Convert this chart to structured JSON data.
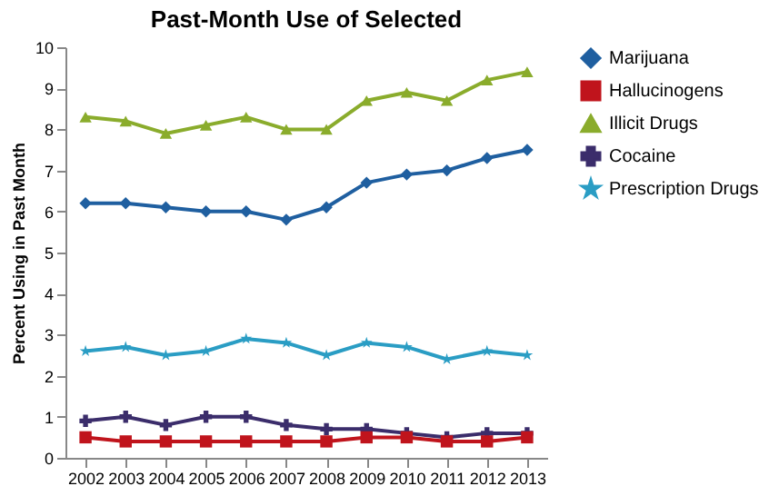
{
  "chart_data": {
    "type": "line",
    "title": "Past-Month Use of Selected",
    "ylabel": "Percent Using in Past Month",
    "categories": [
      "2002",
      "2003",
      "2004",
      "2005",
      "2006",
      "2007",
      "2008",
      "2009",
      "2010",
      "2011",
      "2012",
      "2013"
    ],
    "ylim": [
      0,
      10
    ],
    "yticks": [
      0,
      1,
      2,
      3,
      4,
      5,
      6,
      7,
      8,
      9,
      10
    ],
    "grid": false,
    "legend": "right",
    "series": [
      {
        "name": "Marijuana",
        "color": "#1f5fa0",
        "marker": "diamond",
        "values": [
          6.2,
          6.2,
          6.1,
          6.0,
          6.0,
          5.8,
          6.1,
          6.7,
          6.9,
          7.0,
          7.3,
          7.5
        ]
      },
      {
        "name": "Hallucinogens",
        "color": "#c0141c",
        "marker": "square",
        "values": [
          0.5,
          0.4,
          0.4,
          0.4,
          0.4,
          0.4,
          0.4,
          0.5,
          0.5,
          0.4,
          0.4,
          0.5
        ]
      },
      {
        "name": "Illicit Drugs",
        "color": "#8aac2c",
        "marker": "triangle",
        "values": [
          8.3,
          8.2,
          7.9,
          8.1,
          8.3,
          8.0,
          8.0,
          8.7,
          8.9,
          8.7,
          9.2,
          9.4
        ]
      },
      {
        "name": "Cocaine",
        "color": "#3b2d6b",
        "marker": "cross",
        "values": [
          0.9,
          1.0,
          0.8,
          1.0,
          1.0,
          0.8,
          0.7,
          0.7,
          0.6,
          0.5,
          0.6,
          0.6
        ]
      },
      {
        "name": "Prescription Drugs",
        "color": "#2a9dc4",
        "marker": "star",
        "values": [
          2.6,
          2.7,
          2.5,
          2.6,
          2.9,
          2.8,
          2.5,
          2.8,
          2.7,
          2.4,
          2.6,
          2.5
        ]
      }
    ]
  }
}
